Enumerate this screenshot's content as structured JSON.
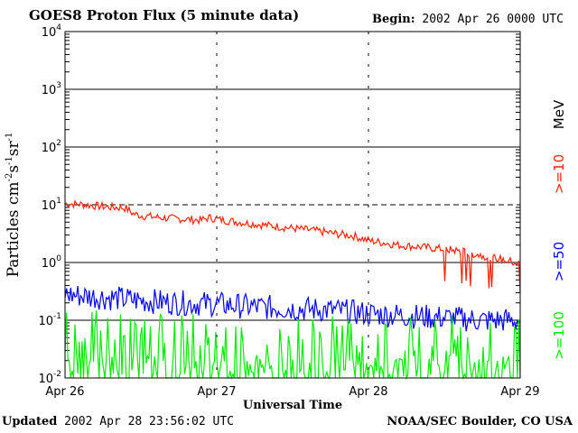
{
  "header": {
    "title": "GOES8 Proton Flux (5 minute data)",
    "begin_label": "Begin:",
    "begin_value": "2002 Apr 26 0000 UTC"
  },
  "footer": {
    "updated_label": "Updated",
    "updated_value": "2002 Apr 28 23:56:02 UTC",
    "credit": "NOAA/SEC Boulder, CO USA"
  },
  "chart_data": {
    "type": "line",
    "title": "GOES8 Proton Flux (5 minute data)",
    "xlabel": "Universal Time",
    "ylabel": "Particles cm-2s-1sr-1",
    "ylabel_parts": [
      {
        "text": "Particles cm",
        "sup": false
      },
      {
        "text": "-2",
        "sup": true
      },
      {
        "text": "s",
        "sup": false
      },
      {
        "text": "-1",
        "sup": true
      },
      {
        "text": "sr",
        "sup": false
      },
      {
        "text": "-1",
        "sup": true
      }
    ],
    "yscale": "log",
    "ylim": [
      0.01,
      10000
    ],
    "xlim": [
      0,
      3
    ],
    "x_unit": "days since 2002 Apr 26 0000 UTC",
    "x_ticks": [
      {
        "value": 0,
        "label": "Apr 26"
      },
      {
        "value": 1,
        "label": "Apr 27"
      },
      {
        "value": 2,
        "label": "Apr 28"
      },
      {
        "value": 3,
        "label": "Apr 29"
      }
    ],
    "y_ticks": [
      {
        "value": 0.01,
        "base": "10",
        "exp": "-2"
      },
      {
        "value": 0.1,
        "base": "10",
        "exp": "-1"
      },
      {
        "value": 1,
        "base": "10",
        "exp": "0"
      },
      {
        "value": 10,
        "base": "10",
        "exp": "1"
      },
      {
        "value": 100,
        "base": "10",
        "exp": "2"
      },
      {
        "value": 1000,
        "base": "10",
        "exp": "3"
      },
      {
        "value": 10000,
        "base": "10",
        "exp": "4"
      }
    ],
    "threshold_line": {
      "value": 10,
      "style": "dashed"
    },
    "unit_label": "MeV",
    "series": [
      {
        "name": ">=10",
        "color": "#ff2000",
        "x": [
          0,
          0.1,
          0.2,
          0.3,
          0.4,
          0.45,
          0.5,
          0.6,
          0.7,
          0.8,
          0.9,
          0.95,
          1.0,
          1.1,
          1.2,
          1.3,
          1.4,
          1.5,
          1.6,
          1.7,
          1.8,
          1.9,
          2.0,
          2.1,
          2.2,
          2.3,
          2.4,
          2.5,
          2.6,
          2.7,
          2.8,
          2.9,
          3.0
        ],
        "values": [
          10.5,
          10.2,
          9.6,
          9.1,
          8.8,
          7.0,
          6.5,
          6.1,
          5.8,
          5.6,
          5.4,
          6.0,
          5.6,
          5.2,
          4.8,
          4.5,
          4.2,
          3.9,
          3.7,
          3.4,
          3.1,
          2.9,
          2.4,
          2.2,
          2.0,
          1.9,
          1.8,
          1.7,
          1.6,
          1.4,
          1.25,
          1.1,
          0.95
        ]
      },
      {
        "name": ">=50",
        "color": "#0000ff",
        "x": [
          0,
          0.25,
          0.5,
          0.75,
          1.0,
          1.25,
          1.5,
          1.75,
          2.0,
          2.25,
          2.5,
          2.75,
          3.0
        ],
        "values": [
          0.28,
          0.25,
          0.22,
          0.2,
          0.19,
          0.17,
          0.16,
          0.15,
          0.13,
          0.12,
          0.11,
          0.1,
          0.1
        ]
      },
      {
        "name": ">=100",
        "color": "#00ee00",
        "x": [
          0,
          0.5,
          1.0,
          1.5,
          2.0,
          2.5,
          3.0
        ],
        "values": [
          0.045,
          0.04,
          0.04,
          0.035,
          0.035,
          0.035,
          0.035
        ]
      }
    ]
  }
}
